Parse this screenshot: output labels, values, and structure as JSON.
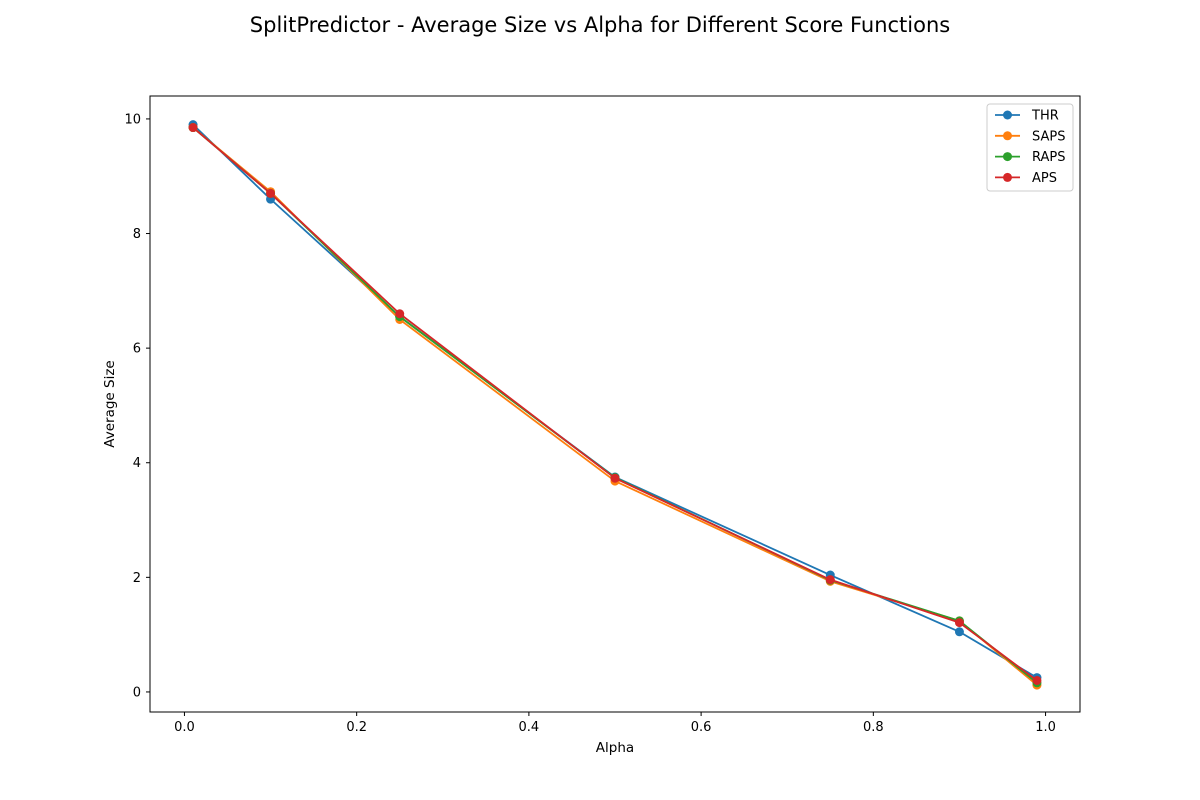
{
  "chart_data": {
    "type": "line",
    "title": "SplitPredictor - Average Size vs Alpha for Different Score Functions",
    "xlabel": "Alpha",
    "ylabel": "Average Size",
    "xlim": [
      -0.04,
      1.04
    ],
    "ylim": [
      -0.35,
      10.4
    ],
    "xticks": [
      0.0,
      0.2,
      0.4,
      0.6,
      0.8,
      1.0
    ],
    "xtick_labels": [
      "0.0",
      "0.2",
      "0.4",
      "0.6",
      "0.8",
      "1.0"
    ],
    "yticks": [
      0,
      2,
      4,
      6,
      8,
      10
    ],
    "ytick_labels": [
      "0",
      "2",
      "4",
      "6",
      "8",
      "10"
    ],
    "grid": false,
    "legend_position": "top-right",
    "x": [
      0.01,
      0.1,
      0.25,
      0.5,
      0.75,
      0.9,
      0.99
    ],
    "series": [
      {
        "name": "THR",
        "color": "#1f77b4",
        "marker": "circle",
        "values": [
          9.9,
          8.6,
          6.55,
          3.75,
          2.04,
          1.05,
          0.25
        ]
      },
      {
        "name": "SAPS",
        "color": "#ff7f0e",
        "marker": "circle",
        "values": [
          9.85,
          8.73,
          6.5,
          3.68,
          1.93,
          1.24,
          0.12
        ]
      },
      {
        "name": "RAPS",
        "color": "#2ca02c",
        "marker": "circle",
        "values": [
          9.85,
          8.7,
          6.55,
          3.74,
          1.95,
          1.24,
          0.16
        ]
      },
      {
        "name": "APS",
        "color": "#d62728",
        "marker": "circle",
        "values": [
          9.85,
          8.7,
          6.6,
          3.73,
          1.96,
          1.21,
          0.2
        ]
      }
    ]
  }
}
